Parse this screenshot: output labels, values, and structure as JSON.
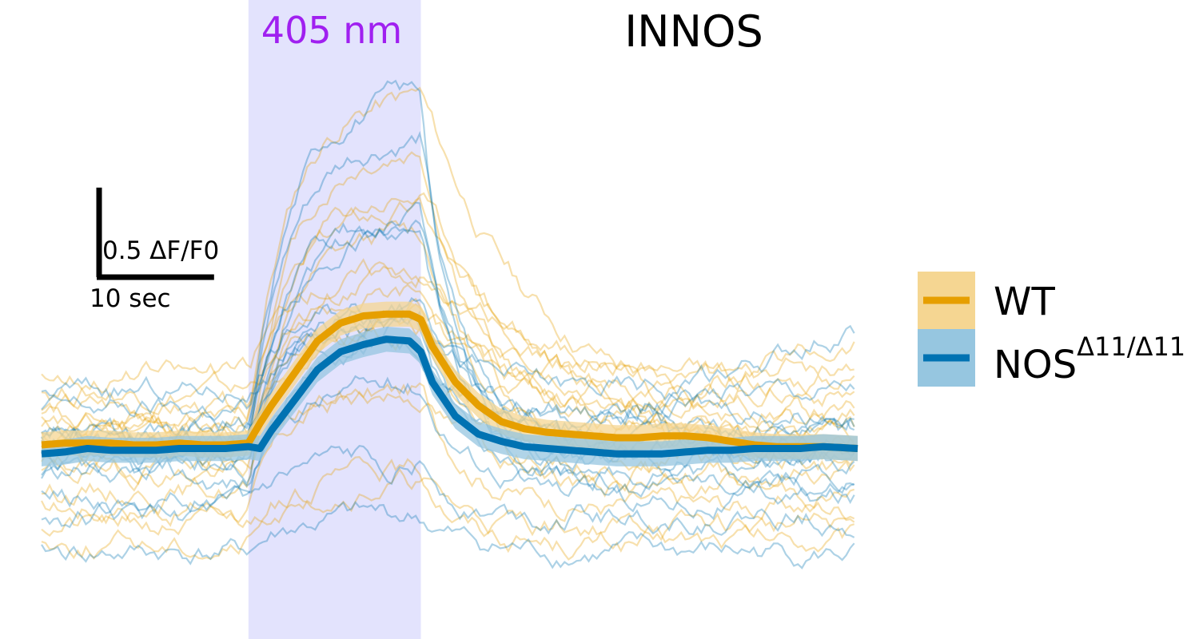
{
  "chart_data": {
    "type": "line",
    "title": "INNOS",
    "stimulus": {
      "label": "405 nm",
      "start_s": 10,
      "end_s": 25,
      "color": "#e3e3fd",
      "label_color": "#a020f0"
    },
    "x_range_s": [
      -8,
      63
    ],
    "y_range": [
      -0.95,
      2.35
    ],
    "scale_bar": {
      "y_label": "0.5 ΔF/F0",
      "y_value": 0.5,
      "x_label": "10 sec",
      "x_value": 10
    },
    "x": [
      -8,
      -6,
      -4,
      -2,
      0,
      2,
      4,
      6,
      8,
      10,
      11,
      12,
      14,
      16,
      18,
      20,
      22,
      24,
      25,
      26,
      28,
      30,
      32,
      34,
      36,
      38,
      40,
      42,
      44,
      46,
      48,
      50,
      52,
      54,
      56,
      58,
      60,
      63
    ],
    "series": [
      {
        "name": "WT",
        "color": "#e69f00",
        "band_color": "#f5d692",
        "mean": [
          0.0,
          0.01,
          0.01,
          0.01,
          0.0,
          0.0,
          0.01,
          0.0,
          0.0,
          0.01,
          0.12,
          0.22,
          0.4,
          0.58,
          0.68,
          0.72,
          0.73,
          0.73,
          0.7,
          0.55,
          0.35,
          0.22,
          0.13,
          0.09,
          0.07,
          0.06,
          0.05,
          0.04,
          0.04,
          0.05,
          0.05,
          0.04,
          0.02,
          0.0,
          -0.01,
          -0.01,
          -0.01,
          -0.02
        ],
        "sem": 0.07,
        "trials": [
          {
            "seed": 11,
            "peak": 1.85,
            "offset": 0.12,
            "decay": 0.1,
            "tail": 0.0
          },
          {
            "seed": 12,
            "peak": 1.6,
            "offset": 0.05,
            "decay": 0.18,
            "tail": 0.0
          },
          {
            "seed": 13,
            "peak": 1.3,
            "offset": -0.1,
            "decay": 0.15,
            "tail": 0.0
          },
          {
            "seed": 14,
            "peak": 1.1,
            "offset": 0.2,
            "decay": 0.12,
            "tail": 0.15
          },
          {
            "seed": 15,
            "peak": 0.95,
            "offset": -0.25,
            "decay": 0.2,
            "tail": 0.0
          },
          {
            "seed": 16,
            "peak": 0.8,
            "offset": 0.0,
            "decay": 0.08,
            "tail": 0.0
          },
          {
            "seed": 17,
            "peak": 0.65,
            "offset": -0.35,
            "decay": 0.22,
            "tail": 0.0
          },
          {
            "seed": 18,
            "peak": 0.55,
            "offset": 0.08,
            "decay": 0.25,
            "tail": 0.0
          },
          {
            "seed": 19,
            "peak": 0.45,
            "offset": -0.15,
            "decay": 0.2,
            "tail": 0.0
          },
          {
            "seed": 20,
            "peak": 0.35,
            "offset": 0.3,
            "decay": 0.15,
            "tail": 0.0
          },
          {
            "seed": 21,
            "peak": 0.25,
            "offset": -0.45,
            "decay": 0.3,
            "tail": 0.0
          },
          {
            "seed": 22,
            "peak": 0.9,
            "offset": 0.03,
            "decay": 0.06,
            "tail": 0.0
          },
          {
            "seed": 23,
            "peak": 1.45,
            "offset": -0.05,
            "decay": 0.09,
            "tail": 0.0
          },
          {
            "seed": 24,
            "peak": 0.7,
            "offset": 0.15,
            "decay": 0.18,
            "tail": 0.4
          },
          {
            "seed": 25,
            "peak": 0.4,
            "offset": -0.55,
            "decay": 0.25,
            "tail": 0.0
          },
          {
            "seed": 26,
            "peak": 0.6,
            "offset": 0.4,
            "decay": 0.12,
            "tail": 0.0
          }
        ]
      },
      {
        "name": "NOS",
        "name_sup": "Δ11/Δ11",
        "color": "#0072b2",
        "band_color": "#96c6e0",
        "mean": [
          -0.05,
          -0.04,
          -0.02,
          -0.03,
          -0.03,
          -0.03,
          -0.02,
          -0.02,
          -0.02,
          -0.01,
          -0.02,
          0.08,
          0.25,
          0.42,
          0.52,
          0.56,
          0.59,
          0.58,
          0.52,
          0.35,
          0.16,
          0.06,
          0.02,
          -0.01,
          -0.02,
          -0.03,
          -0.04,
          -0.05,
          -0.05,
          -0.05,
          -0.04,
          -0.03,
          -0.03,
          -0.02,
          -0.02,
          -0.02,
          -0.01,
          -0.02
        ],
        "sem": 0.07,
        "trials": [
          {
            "seed": 31,
            "peak": 2.05,
            "offset": -0.05,
            "decay": 0.35,
            "tail": 0.0
          },
          {
            "seed": 32,
            "peak": 1.7,
            "offset": 0.05,
            "decay": 0.3,
            "tail": 0.0
          },
          {
            "seed": 33,
            "peak": 1.4,
            "offset": -0.15,
            "decay": 0.28,
            "tail": 0.0
          },
          {
            "seed": 34,
            "peak": 1.15,
            "offset": 0.1,
            "decay": 0.3,
            "tail": 0.0
          },
          {
            "seed": 35,
            "peak": 0.95,
            "offset": -0.3,
            "decay": 0.25,
            "tail": 0.0
          },
          {
            "seed": 36,
            "peak": 0.75,
            "offset": 0.0,
            "decay": 0.3,
            "tail": 0.0
          },
          {
            "seed": 37,
            "peak": 0.55,
            "offset": -0.2,
            "decay": 0.28,
            "tail": 0.0
          },
          {
            "seed": 38,
            "peak": 0.4,
            "offset": 0.2,
            "decay": 0.3,
            "tail": 0.0
          },
          {
            "seed": 39,
            "peak": 0.3,
            "offset": -0.4,
            "decay": 0.3,
            "tail": 0.0
          },
          {
            "seed": 40,
            "peak": 0.6,
            "offset": 0.1,
            "decay": 0.2,
            "tail": 0.55
          },
          {
            "seed": 41,
            "peak": 0.2,
            "offset": -0.6,
            "decay": 0.3,
            "tail": 0.0
          },
          {
            "seed": 42,
            "peak": 0.85,
            "offset": -0.08,
            "decay": 0.32,
            "tail": 0.0
          },
          {
            "seed": 43,
            "peak": 1.25,
            "offset": 0.02,
            "decay": 0.3,
            "tail": 0.0
          },
          {
            "seed": 44,
            "peak": 0.5,
            "offset": 0.3,
            "decay": 0.25,
            "tail": 0.0
          }
        ]
      }
    ],
    "legend": "right"
  }
}
